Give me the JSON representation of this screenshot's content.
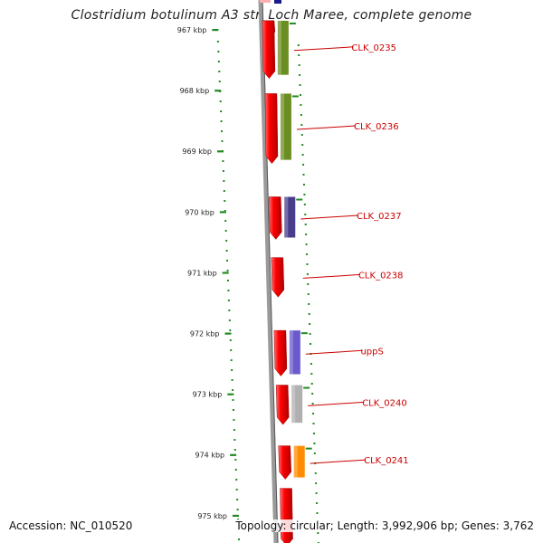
{
  "title": "Clostridium botulinum A3 str. Loch Maree, complete genome",
  "accession_text": "Accession: NC_010520",
  "topology_text": "Topology: circular; Length: 3,992,906 bp; Genes: 3,762",
  "scale": {
    "unit": "kbp",
    "ticks": [
      {
        "label": "967 kbp",
        "kbp": 967
      },
      {
        "label": "968 kbp",
        "kbp": 968
      },
      {
        "label": "969 kbp",
        "kbp": 969
      },
      {
        "label": "970 kbp",
        "kbp": 970
      },
      {
        "label": "971 kbp",
        "kbp": 971
      },
      {
        "label": "972 kbp",
        "kbp": 972
      },
      {
        "label": "973 kbp",
        "kbp": 973
      },
      {
        "label": "974 kbp",
        "kbp": 974
      },
      {
        "label": "975 kbp",
        "kbp": 975
      }
    ]
  },
  "genes": [
    {
      "label": "",
      "start_kbp": 966.85,
      "end_kbp": 967.15,
      "color": "#ee0000"
    },
    {
      "label": "CLK_0235",
      "start_kbp": 966.85,
      "end_kbp": 967.8,
      "color": "#ee0000",
      "cds_color": "#6b8e23"
    },
    {
      "label": "CLK_0236",
      "start_kbp": 968.05,
      "end_kbp": 969.2,
      "color": "#ee0000",
      "cds_color": "#6b8e23"
    },
    {
      "label": "CLK_0237",
      "start_kbp": 969.75,
      "end_kbp": 970.45,
      "color": "#ee0000",
      "cds_color": "#483d8b"
    },
    {
      "label": "CLK_0238",
      "start_kbp": 970.75,
      "end_kbp": 971.4,
      "color": "#ee0000"
    },
    {
      "label": "uppS",
      "start_kbp": 971.95,
      "end_kbp": 972.7,
      "color": "#ee0000",
      "cds_color": "#6a5acd"
    },
    {
      "label": "CLK_0240",
      "start_kbp": 972.85,
      "end_kbp": 973.5,
      "color": "#ee0000",
      "cds_color": "#b0b0b0"
    },
    {
      "label": "CLK_0241",
      "start_kbp": 973.85,
      "end_kbp": 974.4,
      "color": "#ee0000",
      "cds_color": "#ff8c00"
    },
    {
      "label": "",
      "start_kbp": 974.55,
      "end_kbp": 975.5,
      "color": "#ee0000"
    }
  ],
  "colors": {
    "backbone": "#808080",
    "tick": "#228b22",
    "label_text": "#cc0000",
    "label_line": "#cc0000",
    "scale_text": "#222222"
  }
}
